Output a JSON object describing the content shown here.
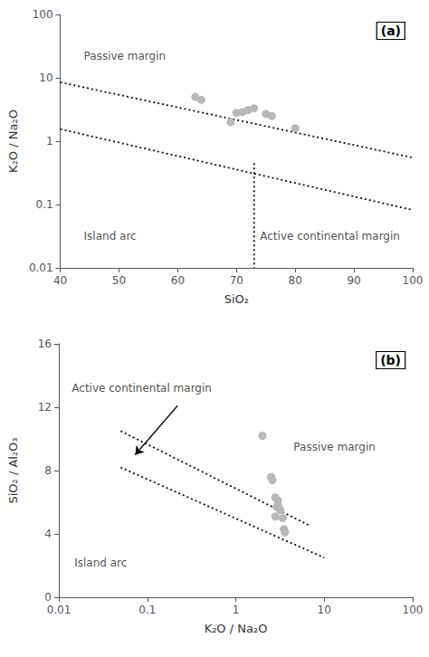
{
  "chart_data": [
    {
      "type": "scatter",
      "title": "(a)",
      "x_label": "SiO₂",
      "y_label": "K₂O / Na₂O",
      "xlim": [
        40,
        100
      ],
      "xticks": [
        40,
        50,
        60,
        70,
        80,
        90,
        100
      ],
      "ylim": [
        0.01,
        100
      ],
      "yticks": [
        0.01,
        0.1,
        1,
        10,
        100
      ],
      "log": "y",
      "grid": false,
      "series": [
        {
          "type": "line",
          "color": "#111111",
          "line_style": "dotted",
          "x": [
            40,
            100
          ],
          "values": [
            8.5,
            0.55
          ]
        },
        {
          "type": "line",
          "color": "#111111",
          "line_style": "dotted",
          "x": [
            40,
            100
          ],
          "values": [
            1.55,
            0.082
          ]
        },
        {
          "type": "line",
          "color": "#111111",
          "line_style": "dotted",
          "x": [
            73,
            73
          ],
          "values": [
            0.45,
            0.01
          ]
        },
        {
          "type": "scatter",
          "color": "#b8b8b8",
          "marker": "circle",
          "x": [
            63,
            64,
            69,
            70,
            71,
            72,
            73,
            75,
            76,
            80
          ],
          "values": [
            5.0,
            4.5,
            2.0,
            2.8,
            2.9,
            3.1,
            3.3,
            2.7,
            2.5,
            1.6
          ]
        }
      ],
      "annotations": [
        {
          "text": "Passive margin",
          "x": 44,
          "y": 22
        },
        {
          "text": "Island arc",
          "x": 44,
          "y": 0.032
        },
        {
          "text": "Active continental margin",
          "x": 74,
          "y": 0.032
        }
      ]
    },
    {
      "type": "scatter",
      "title": "(b)",
      "x_label": "K₂O / Na₂O",
      "y_label": "SiO₂ / Al₂O₃",
      "xlim": [
        0.01,
        100
      ],
      "xticks": [
        0.01,
        0.1,
        1,
        10,
        100
      ],
      "ylim": [
        0,
        16
      ],
      "yticks": [
        0,
        4,
        8,
        12,
        16
      ],
      "log": "x",
      "grid": false,
      "series": [
        {
          "type": "line",
          "color": "#111111",
          "line_style": "dotted",
          "x": [
            0.05,
            7.0
          ],
          "values": [
            10.5,
            4.5
          ]
        },
        {
          "type": "line",
          "color": "#111111",
          "line_style": "dotted",
          "x": [
            0.05,
            10.0
          ],
          "values": [
            8.2,
            2.5
          ]
        },
        {
          "type": "scatter",
          "color": "#b8b8b8",
          "marker": "circle",
          "x": [
            2.0,
            2.5,
            2.6,
            2.8,
            3.0,
            3.0,
            2.9,
            3.1,
            3.2,
            2.8,
            3.4,
            3.5,
            3.6
          ],
          "values": [
            10.2,
            7.6,
            7.4,
            6.3,
            6.1,
            5.8,
            5.7,
            5.6,
            5.5,
            5.1,
            5.0,
            4.3,
            4.1
          ]
        }
      ],
      "annotations": [
        {
          "text": "Active continental margin",
          "x": 0.014,
          "y": 13.2
        },
        {
          "text": "Passive margin",
          "x": 4.5,
          "y": 9.5
        },
        {
          "text": "Island arc",
          "x": 0.015,
          "y": 2.2
        },
        {
          "type": "arrow",
          "x": [
            0.22,
            0.073
          ],
          "y": [
            12.1,
            9.0
          ],
          "color": "black"
        }
      ]
    }
  ]
}
